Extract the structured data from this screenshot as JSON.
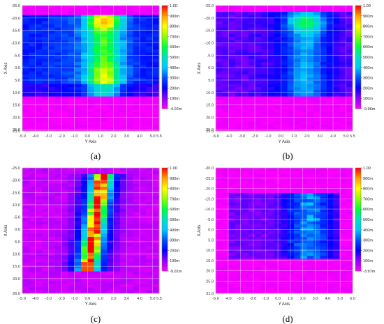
{
  "figure": {
    "captions": [
      "(a)",
      "(b)",
      "(c)",
      "(d)"
    ]
  },
  "colorbar": {
    "stops": [
      "#ff00ff",
      "#9000ff",
      "#0000ff",
      "#0050ff",
      "#00c8ff",
      "#00e0c0",
      "#00ff40",
      "#90ff00",
      "#ffff00",
      "#ffa000",
      "#ff0000"
    ]
  },
  "chart_data": [
    {
      "type": "heatmap",
      "panel": "(a)",
      "xlabel": "Y Axis",
      "ylabel": "X Axis",
      "x_ticks": [
        "-5.0",
        "-4.0",
        "-3.0",
        "-2.0",
        "-1.0",
        "0.0",
        "1.0",
        "2.0",
        "3.0",
        "4.0",
        "5.0",
        "5.5"
      ],
      "y_ticks": [
        "-25.0",
        "-20.0",
        "-15.0",
        "-10.0",
        "-5.0",
        "0.0",
        "5.0",
        "10.0",
        "15.0",
        "20.0",
        "25.0",
        "25.5"
      ],
      "x_range": [
        -5.0,
        5.5
      ],
      "y_range": [
        -25.0,
        25.5
      ],
      "colorbar_labels": [
        "1.00",
        "900m",
        "800m",
        "700m",
        "600m",
        "500m",
        "400m",
        "300m",
        "200m",
        "100m",
        "-4.02m"
      ],
      "color_range": [
        0.0,
        1.0
      ],
      "pattern": "a",
      "pattern_note_values": {
        "peak": 0.62
      }
    },
    {
      "type": "heatmap",
      "panel": "(b)",
      "xlabel": "Y Axis",
      "ylabel": "X Axis",
      "x_ticks": [
        "-5.0",
        "-4.0",
        "-3.0",
        "-2.0",
        "-1.0",
        "0.0",
        "1.0",
        "2.0",
        "3.0",
        "4.0",
        "5.0",
        "5.5"
      ],
      "y_ticks": [
        "-25.0",
        "-20.0",
        "-15.0",
        "-10.0",
        "-5.0",
        "0.0",
        "5.0",
        "10.0",
        "15.0",
        "20.0",
        "25.0",
        "25.5"
      ],
      "x_range": [
        -5.0,
        5.5
      ],
      "y_range": [
        -25.0,
        25.5
      ],
      "colorbar_labels": [
        "1.00",
        "900m",
        "800m",
        "700m",
        "600m",
        "500m",
        "400m",
        "300m",
        "200m",
        "100m",
        "-9.96m"
      ],
      "color_range": [
        0.0,
        1.0
      ],
      "pattern": "b",
      "pattern_note_values": {
        "peak": 0.45
      }
    },
    {
      "type": "heatmap",
      "panel": "(c)",
      "xlabel": "Y Axis",
      "ylabel": "X Axis",
      "x_ticks": [
        "-5.0",
        "-4.0",
        "-3.0",
        "-2.0",
        "-1.0",
        "0.0",
        "1.0",
        "2.0",
        "3.0",
        "4.0",
        "5.0",
        "5.5"
      ],
      "y_ticks": [
        "-25.0",
        "-20.0",
        "-15.0",
        "-10.0",
        "-5.0",
        "0.0",
        "5.0",
        "10.0",
        "15.0",
        "20.0",
        "26.0"
      ],
      "x_range": [
        -5.0,
        5.5
      ],
      "y_range": [
        -25.0,
        26.0
      ],
      "colorbar_labels": [
        "1.00",
        "900m",
        "800m",
        "700m",
        "600m",
        "500m",
        "400m",
        "300m",
        "200m",
        "100m",
        "-9.01m"
      ],
      "color_range": [
        0.0,
        1.0
      ],
      "pattern": "c",
      "pattern_note_values": {
        "peak": 1.0
      }
    },
    {
      "type": "heatmap",
      "panel": "(d)",
      "xlabel": "Y Axis",
      "ylabel": "X Axis",
      "x_ticks": [
        "-5.0",
        "-4.0",
        "-3.0",
        "-2.0",
        "-1.0",
        "0.0",
        "1.0",
        "2.0",
        "3.0",
        "4.0",
        "5.0",
        "6.0"
      ],
      "y_ticks": [
        "-30.0",
        "-25.0",
        "-20.0",
        "-15.0",
        "-10.0",
        "-5.0",
        "0.0",
        "5.0",
        "10.0",
        "15.0",
        "20.0",
        "25.0",
        "31.0"
      ],
      "x_range": [
        -5.0,
        6.0
      ],
      "y_range": [
        -30.0,
        31.0
      ],
      "colorbar_labels": [
        "1.00",
        "900m",
        "800m",
        "700m",
        "600m",
        "500m",
        "400m",
        "300m",
        "200m",
        "100m",
        "-3.97m"
      ],
      "color_range": [
        0.0,
        1.0
      ],
      "pattern": "d",
      "pattern_note_values": {
        "peak": 0.32
      }
    }
  ]
}
